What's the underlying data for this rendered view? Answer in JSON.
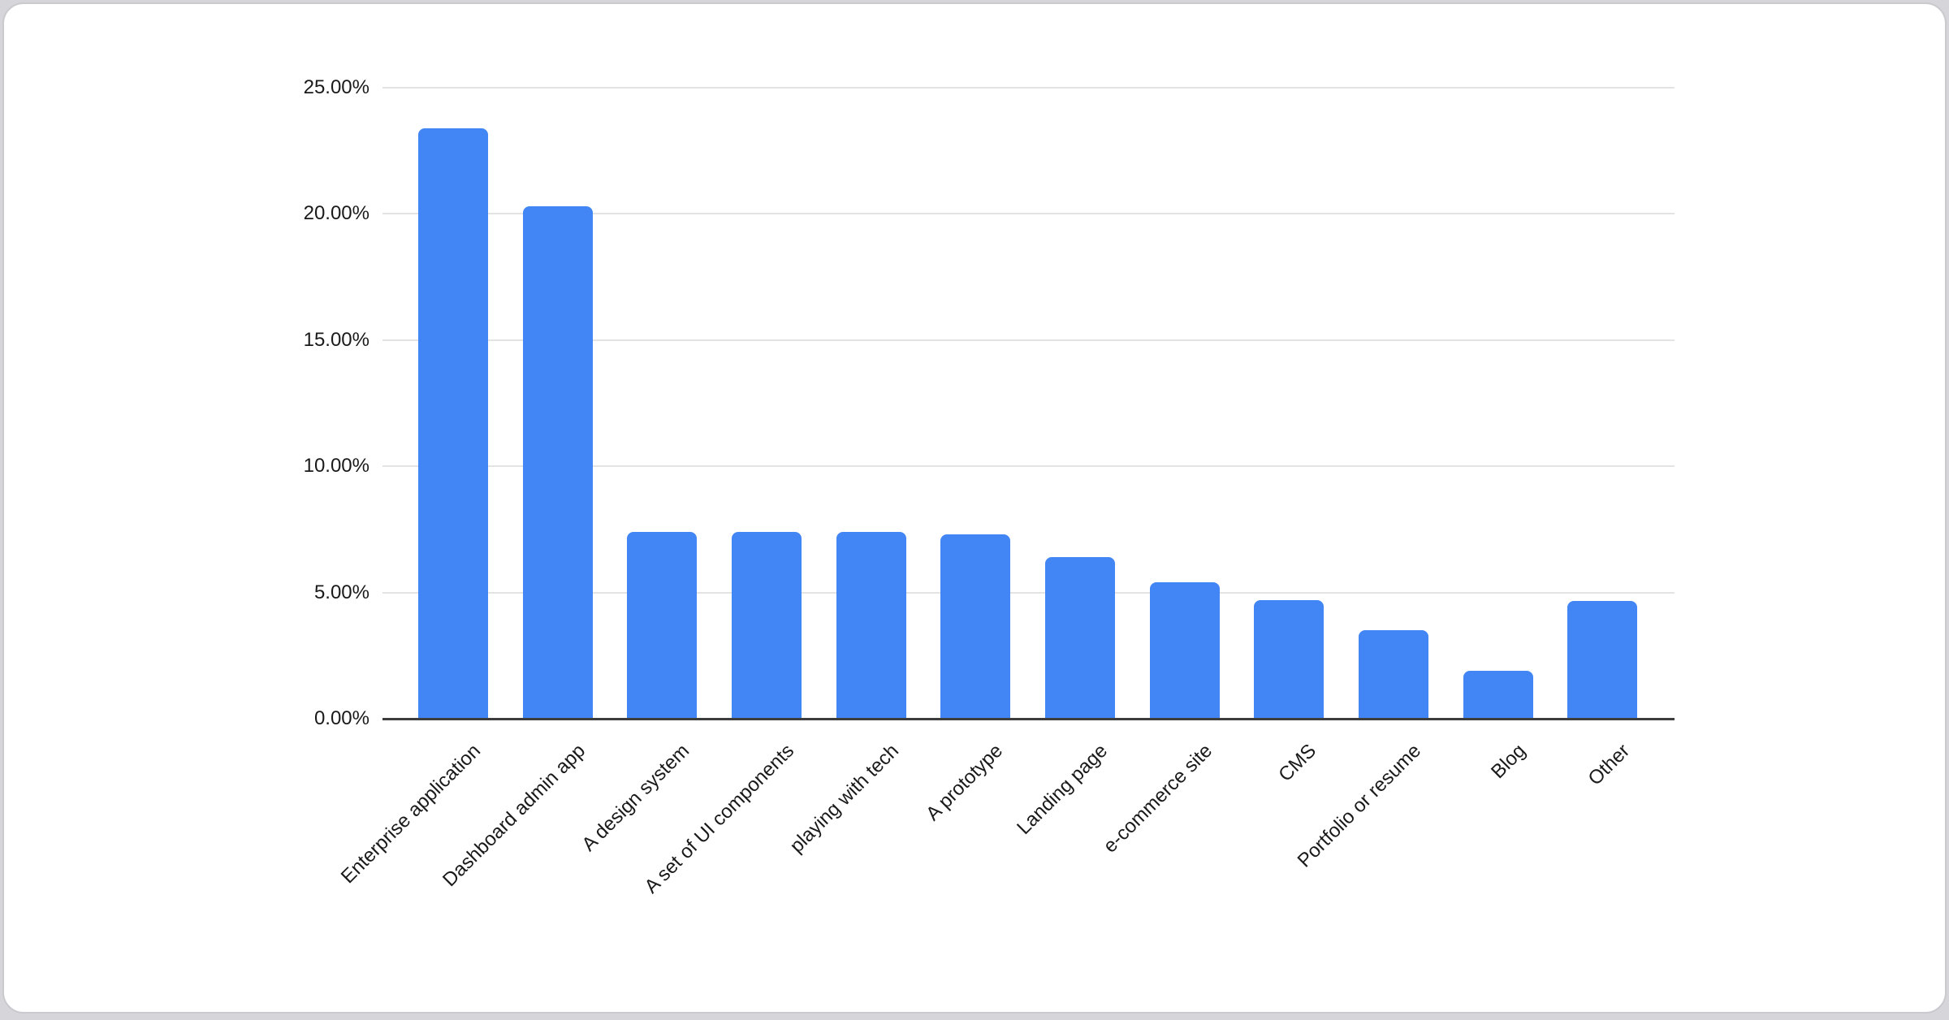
{
  "chart_data": {
    "type": "bar",
    "title": "",
    "xlabel": "",
    "ylabel": "",
    "categories": [
      "Enterprise application",
      "Dashboard admin app",
      "A design system",
      "A set of UI components",
      "playing with tech",
      "A prototype",
      "Landing page",
      "e-commerce site",
      "CMS",
      "Portfolio or resume",
      "Blog",
      "Other"
    ],
    "values": [
      23.4,
      20.3,
      7.4,
      7.4,
      7.4,
      7.3,
      6.4,
      5.4,
      4.7,
      3.5,
      1.9,
      4.65
    ],
    "value_unit": "%",
    "ylim": [
      0,
      25
    ],
    "y_tick_interval": 5,
    "y_tick_labels": [
      "0.00%",
      "5.00%",
      "10.00%",
      "15.00%",
      "20.00%",
      "25.00%"
    ],
    "grid": true,
    "legend": "none",
    "x_label_rotation_deg": -45
  },
  "colors": {
    "bar": "#4285f4",
    "gridline": "#e3e3e3",
    "axis_line": "#3d3d3d",
    "label_text": "#1a1a1a",
    "card_background": "#ffffff",
    "card_border": "#c9c9ce",
    "page_background": "#d6d6da"
  }
}
